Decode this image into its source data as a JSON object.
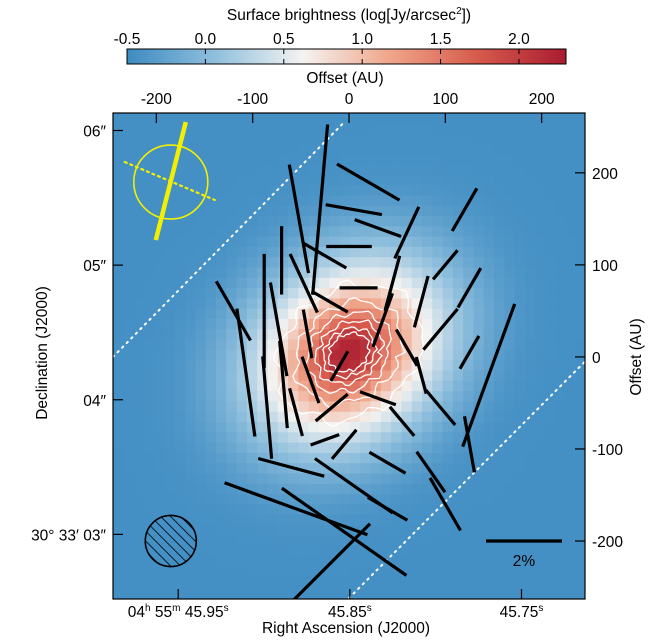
{
  "chart_data": {
    "type": "heatmap",
    "colorbar": {
      "label_main": "Surface brightness (log[Jy/arcsec",
      "label_sup": "2",
      "label_tail": "])",
      "range": [
        -0.5,
        2.3
      ],
      "ticks": [
        {
          "value": -0.5,
          "label": "-0.5"
        },
        {
          "value": 0.0,
          "label": "0.0"
        },
        {
          "value": 0.5,
          "label": "0.5"
        },
        {
          "value": 1.0,
          "label": "1.0"
        },
        {
          "value": 1.5,
          "label": "1.5"
        },
        {
          "value": 2.0,
          "label": "2.0"
        }
      ],
      "colors": [
        "#3d8bc2",
        "#8fbfdd",
        "#f4f3f1",
        "#f0a58a",
        "#d65a4c",
        "#aa1c30"
      ]
    },
    "axes": {
      "bottom": {
        "label": "Right Ascension (J2000)",
        "range_s": [
          45.988,
          45.713
        ],
        "ticks": [
          {
            "value": 45.95,
            "pre": "04",
            "h": "h",
            "mid1": " 55",
            "m": "m",
            "mid2": " 45.95",
            "s": "s"
          },
          {
            "value": 45.85,
            "pre": "",
            "h": "",
            "mid1": "",
            "m": "",
            "mid2": "45.85",
            "s": "s"
          },
          {
            "value": 45.75,
            "pre": "",
            "h": "",
            "mid1": "",
            "m": "",
            "mid2": "45.75",
            "s": "s"
          }
        ]
      },
      "left": {
        "label": "Declination (J2000)",
        "range_arcsec": [
          2.52,
          6.13
        ],
        "ticks": [
          {
            "value": 6.0,
            "label": "06″"
          },
          {
            "value": 5.0,
            "label": "05″"
          },
          {
            "value": 4.0,
            "label": "04″"
          },
          {
            "value": 3.0,
            "label": "30° 33′ 03″"
          }
        ]
      },
      "top": {
        "label": "Offset (AU)",
        "range_au": [
          -245,
          245
        ],
        "ticks": [
          {
            "value": -200,
            "label": "-200"
          },
          {
            "value": -100,
            "label": "-100"
          },
          {
            "value": 0,
            "label": "0"
          },
          {
            "value": 100,
            "label": "100"
          },
          {
            "value": 200,
            "label": "200"
          }
        ]
      },
      "right": {
        "label": "Offset (AU)",
        "range_au": [
          -263,
          265
        ],
        "ticks": [
          {
            "value": 200,
            "label": "200"
          },
          {
            "value": 100,
            "label": "100"
          },
          {
            "value": 0,
            "label": "0"
          },
          {
            "value": -100,
            "label": "-100"
          },
          {
            "value": -200,
            "label": "-200"
          }
        ]
      }
    },
    "map": {
      "center_au": [
        0,
        5
      ],
      "peak_log_brightness": 2.2,
      "background_log_brightness": -0.45,
      "disk_pa_deg": 45,
      "contours_log_brightness": [
        0.75,
        1.15,
        1.45,
        1.7,
        1.9,
        2.05
      ],
      "min_brightness": -0.5,
      "max_brightness": 2.3
    },
    "scale_bar": {
      "label": "2%",
      "percent": 2
    },
    "polarization_vectors": [
      {
        "x": -107,
        "y": -17,
        "p": 3.4,
        "pa": 8
      },
      {
        "x": -88,
        "y": 50,
        "p": 3.0,
        "pa": 0
      },
      {
        "x": -73,
        "y": 30,
        "p": 2.5,
        "pa": 10
      },
      {
        "x": -68,
        "y": -30,
        "p": 2.3,
        "pa": 5
      },
      {
        "x": -70,
        "y": 105,
        "p": 1.8,
        "pa": 0
      },
      {
        "x": -52,
        "y": 150,
        "p": 2.9,
        "pa": 10
      },
      {
        "x": -47,
        "y": 80,
        "p": 1.7,
        "pa": 25
      },
      {
        "x": -43,
        "y": 25,
        "p": 1.3,
        "pa": 10
      },
      {
        "x": -40,
        "y": -25,
        "p": 1.3,
        "pa": 20
      },
      {
        "x": -30,
        "y": 160,
        "p": 4.5,
        "pa": -5
      },
      {
        "x": -25,
        "y": 110,
        "p": 1.3,
        "pa": 60
      },
      {
        "x": -20,
        "y": 60,
        "p": 1.1,
        "pa": 60
      },
      {
        "x": -18,
        "y": -55,
        "p": 1.1,
        "pa": -50
      },
      {
        "x": -25,
        "y": -90,
        "p": 0.8,
        "pa": -70
      },
      {
        "x": 0,
        "y": 120,
        "p": 1.2,
        "pa": 90
      },
      {
        "x": 5,
        "y": 160,
        "p": 1.5,
        "pa": 80
      },
      {
        "x": 10,
        "y": 75,
        "p": 1.0,
        "pa": 90
      },
      {
        "x": 20,
        "y": 190,
        "p": 1.9,
        "pa": 60
      },
      {
        "x": 30,
        "y": 140,
        "p": 1.3,
        "pa": 70
      },
      {
        "x": 35,
        "y": 40,
        "p": 1.5,
        "pa": -20
      },
      {
        "x": 30,
        "y": -45,
        "p": 1.0,
        "pa": 70
      },
      {
        "x": 45,
        "y": 80,
        "p": 1.5,
        "pa": -15
      },
      {
        "x": 55,
        "y": -70,
        "p": 1.0,
        "pa": 40
      },
      {
        "x": 60,
        "y": 135,
        "p": 1.5,
        "pa": -25
      },
      {
        "x": 60,
        "y": 10,
        "p": 1.1,
        "pa": 30
      },
      {
        "x": 75,
        "y": 60,
        "p": 1.4,
        "pa": -15
      },
      {
        "x": 75,
        "y": -20,
        "p": 1.0,
        "pa": 15
      },
      {
        "x": 100,
        "y": 100,
        "p": 1.0,
        "pa": -40
      },
      {
        "x": 95,
        "y": 30,
        "p": 1.4,
        "pa": -40
      },
      {
        "x": 95,
        "y": -55,
        "p": 1.2,
        "pa": 40
      },
      {
        "x": 120,
        "y": 160,
        "p": 1.3,
        "pa": -30
      },
      {
        "x": 125,
        "y": 75,
        "p": 1.2,
        "pa": -30
      },
      {
        "x": 125,
        "y": 5,
        "p": 1.0,
        "pa": -30
      },
      {
        "x": 145,
        "y": -20,
        "p": 4.0,
        "pa": -20
      },
      {
        "x": 125,
        "y": -95,
        "p": 1.5,
        "pa": 10
      },
      {
        "x": 85,
        "y": -125,
        "p": 1.3,
        "pa": 35
      },
      {
        "x": 40,
        "y": -115,
        "p": 1.1,
        "pa": 60
      },
      {
        "x": 5,
        "y": -140,
        "p": 2.5,
        "pa": 55
      },
      {
        "x": -5,
        "y": -190,
        "p": 4.0,
        "pa": 55
      },
      {
        "x": -20,
        "y": -225,
        "p": 3.0,
        "pa": -45
      },
      {
        "x": -55,
        "y": -165,
        "p": 4.0,
        "pa": 70
      },
      {
        "x": -60,
        "y": -120,
        "p": 1.8,
        "pa": 75
      },
      {
        "x": -85,
        "y": -55,
        "p": 2.7,
        "pa": 5
      },
      {
        "x": -55,
        "y": -60,
        "p": 1.3,
        "pa": 15
      },
      {
        "x": -120,
        "y": 50,
        "p": 1.8,
        "pa": 30
      },
      {
        "x": -10,
        "y": -10,
        "p": 0.9,
        "pa": -30
      },
      {
        "x": -5,
        "y": -95,
        "p": 1.0,
        "pa": -40
      },
      {
        "x": 100,
        "y": -160,
        "p": 1.6,
        "pa": 30
      },
      {
        "x": 40,
        "y": -165,
        "p": 1.2,
        "pa": 60
      }
    ],
    "beam_ellipse": {
      "x_au": -185,
      "y_au": -200,
      "fwhm_au": 53
    }
  }
}
